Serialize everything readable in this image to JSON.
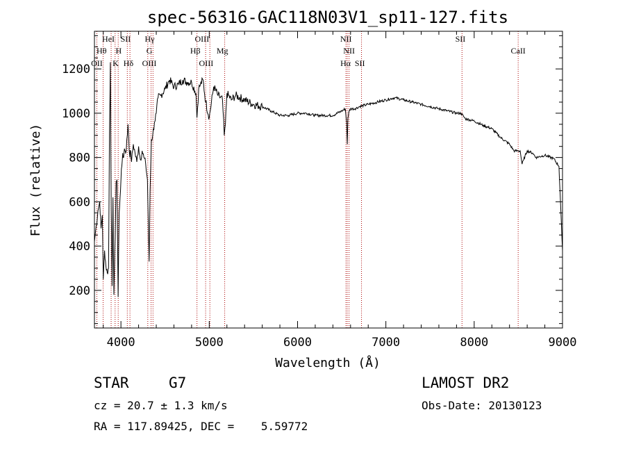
{
  "chart_data": {
    "type": "line",
    "title": "spec-56316-GAC118N03V1_sp11-127.fits",
    "xlabel": "Wavelength (Å)",
    "ylabel": "Flux (relative)",
    "xlim": [
      3700,
      9000
    ],
    "ylim": [
      30,
      1370
    ],
    "x_ticks": [
      4000,
      5000,
      6000,
      7000,
      8000,
      9000
    ],
    "y_ticks": [
      200,
      400,
      600,
      800,
      1000,
      1200
    ],
    "grid": false,
    "line_color": "#000000",
    "marker_color": "#aa0000",
    "series": [
      {
        "x": [
          3700,
          3720,
          3740,
          3760,
          3775,
          3790,
          3800,
          3815,
          3830,
          3845,
          3860,
          3870,
          3880,
          3890,
          3900,
          3910,
          3920,
          3935,
          3945,
          3955,
          3968,
          3980,
          3990,
          4000,
          4010,
          4020,
          4030,
          4040,
          4060,
          4080,
          4100,
          4110,
          4120,
          4140,
          4160,
          4180,
          4200,
          4220,
          4240,
          4260,
          4280,
          4300,
          4310,
          4320,
          4330,
          4345,
          4360,
          4380,
          4400,
          4420,
          4450,
          4500,
          4550,
          4600,
          4650,
          4700,
          4750,
          4800,
          4850,
          4861,
          4880,
          4900,
          4930,
          4960,
          5000,
          5050,
          5100,
          5150,
          5170,
          5183,
          5200,
          5250,
          5300,
          5400,
          5500,
          5600,
          5700,
          5800,
          5900,
          6000,
          6100,
          6200,
          6300,
          6400,
          6500,
          6540,
          6555,
          6563,
          6570,
          6585,
          6600,
          6650,
          6700,
          6800,
          6900,
          7000,
          7100,
          7200,
          7300,
          7400,
          7500,
          7600,
          7700,
          7800,
          7850,
          7900,
          8000,
          8100,
          8200,
          8300,
          8400,
          8450,
          8498,
          8520,
          8542,
          8560,
          8600,
          8662,
          8700,
          8800,
          8900,
          8960,
          9000
        ],
        "y": [
          420,
          490,
          560,
          600,
          480,
          540,
          250,
          380,
          310,
          280,
          300,
          900,
          1230,
          560,
          220,
          620,
          180,
          440,
          690,
          700,
          170,
          550,
          620,
          700,
          760,
          820,
          800,
          840,
          830,
          950,
          800,
          830,
          780,
          860,
          820,
          780,
          850,
          790,
          830,
          800,
          770,
          700,
          500,
          330,
          650,
          880,
          900,
          960,
          1000,
          1070,
          1080,
          1110,
          1150,
          1120,
          1130,
          1150,
          1140,
          1140,
          1090,
          980,
          1110,
          1130,
          1150,
          1050,
          980,
          1120,
          1080,
          1060,
          900,
          950,
          1090,
          1060,
          1080,
          1060,
          1040,
          1030,
          1010,
          990,
          990,
          1000,
          1000,
          990,
          990,
          990,
          1010,
          1020,
          960,
          860,
          980,
          1010,
          1020,
          1020,
          1030,
          1040,
          1050,
          1060,
          1070,
          1060,
          1050,
          1040,
          1030,
          1020,
          1010,
          1000,
          1000,
          975,
          965,
          945,
          930,
          890,
          860,
          830,
          830,
          830,
          770,
          790,
          830,
          820,
          800,
          810,
          795,
          760,
          380
        ]
      }
    ],
    "line_markers": [
      {
        "x": 3727,
        "label": "OII",
        "row": 3,
        "align": "middle"
      },
      {
        "x": 3798,
        "label": "Hθ",
        "row": 2,
        "align": "end"
      },
      {
        "x": 3889,
        "label": "HeI",
        "row": 1,
        "align": "end"
      },
      {
        "x": 3934,
        "label": "K",
        "row": 3,
        "align": "end"
      },
      {
        "x": 3969,
        "label": "H",
        "row": 2,
        "align": "end"
      },
      {
        "x": 4072,
        "label": "SII",
        "row": 1,
        "align": "end"
      },
      {
        "x": 4102,
        "label": "Hδ",
        "row": 3,
        "align": "end"
      },
      {
        "x": 4304,
        "label": "G",
        "row": 2,
        "align": "start"
      },
      {
        "x": 4341,
        "label": "Hγ",
        "row": 1,
        "align": "end"
      },
      {
        "x": 4363,
        "label": "OIII",
        "row": 3,
        "align": "end"
      },
      {
        "x": 4861,
        "label": "Hβ",
        "row": 2,
        "align": "end"
      },
      {
        "x": 4959,
        "label": "OIII",
        "row": 1,
        "align": "end"
      },
      {
        "x": 5007,
        "label": "OIII",
        "row": 3,
        "align": "end"
      },
      {
        "x": 5175,
        "label": "Mg",
        "row": 2,
        "align": "end"
      },
      {
        "x": 6548,
        "label": "NII",
        "row": 1,
        "align": "middle"
      },
      {
        "x": 6563,
        "label": "Hα",
        "row": 3,
        "align": "end"
      },
      {
        "x": 6583,
        "label": "NII",
        "row": 2,
        "align": "middle"
      },
      {
        "x": 6724,
        "label": "SII",
        "row": 3,
        "align": "end"
      },
      {
        "x": 7862,
        "label": "SII",
        "row": 1,
        "align": "end"
      },
      {
        "x": 8498,
        "label": "CaII",
        "row": 2,
        "align": "middle"
      }
    ]
  },
  "info": {
    "object_class": "STAR",
    "subclass": "G7",
    "survey": "LAMOST DR2",
    "redshift_text": "cz = 20.7 ± 1.3 km/s",
    "obs_date_text": "Obs-Date: 20130123",
    "coords_text": "RA = 117.89425, DEC =    5.59772"
  }
}
